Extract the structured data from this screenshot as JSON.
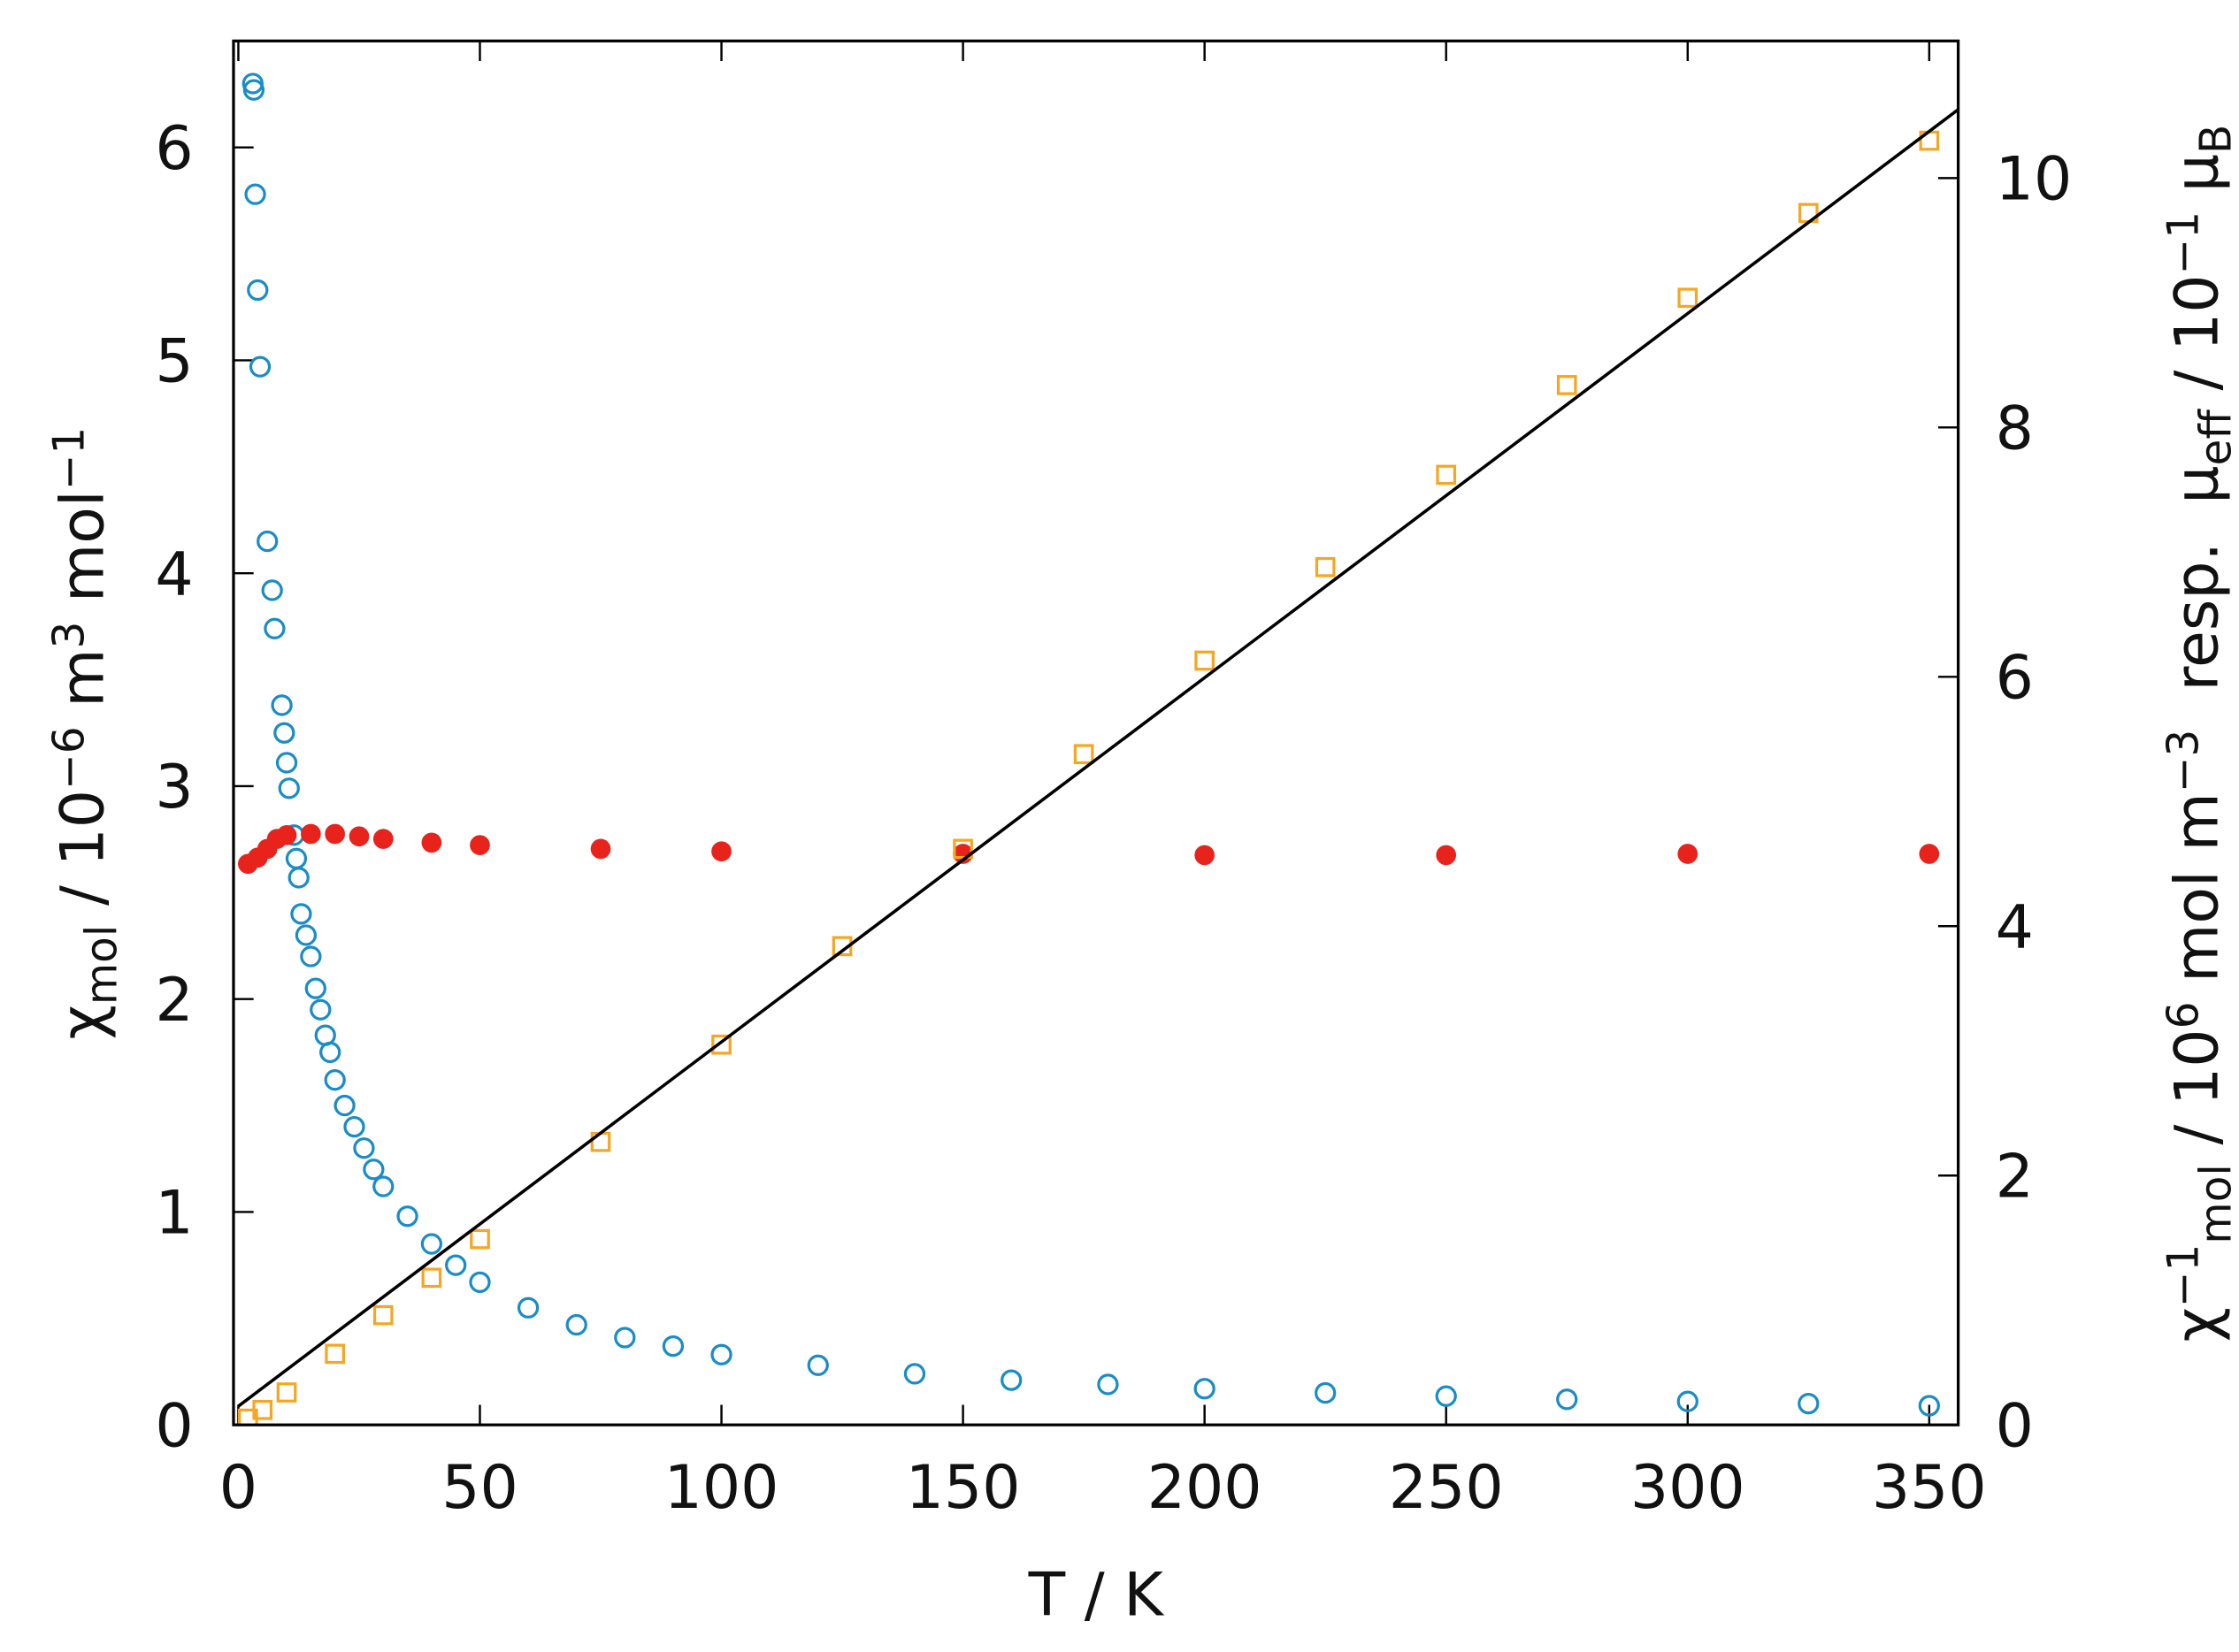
{
  "chart_data": {
    "type": "scatter",
    "x_label": "T / K",
    "y_label": [
      {
        "text": "χ",
        "pos": "base"
      },
      {
        "text": "mol",
        "pos": "sub"
      },
      {
        "text": " / 10",
        "pos": "base"
      },
      {
        "text": "−6",
        "pos": "sup"
      },
      {
        "text": " m",
        "pos": "base"
      },
      {
        "text": "3",
        "pos": "sup"
      },
      {
        "text": " mol",
        "pos": "base"
      },
      {
        "text": "−1",
        "pos": "sup"
      }
    ],
    "y2_label": [
      {
        "text": "χ",
        "pos": "base"
      },
      {
        "text": "−1",
        "pos": "sup"
      },
      {
        "text": "mol",
        "pos": "sub"
      },
      {
        "text": " / 10",
        "pos": "base"
      },
      {
        "text": "6",
        "pos": "sup"
      },
      {
        "text": " mol m",
        "pos": "base"
      },
      {
        "text": "−3",
        "pos": "sup"
      },
      {
        "text": "  resp.  μ",
        "pos": "base"
      },
      {
        "text": "eff",
        "pos": "sub"
      },
      {
        "text": " / 10",
        "pos": "base"
      },
      {
        "text": "−1",
        "pos": "sup"
      },
      {
        "text": " μ",
        "pos": "base"
      },
      {
        "text": "B",
        "pos": "sub"
      }
    ],
    "xlim": [
      -1,
      356
    ],
    "xticks": [
      0,
      50,
      100,
      150,
      200,
      250,
      300,
      350
    ],
    "ylim": [
      0,
      6.5
    ],
    "yticks": [
      0,
      1,
      2,
      3,
      4,
      5,
      6
    ],
    "y2lim": [
      0,
      11.1
    ],
    "y2ticks": [
      0,
      2,
      4,
      6,
      8,
      10
    ],
    "series": [
      {
        "color": "#1a8cc6",
        "marker": "open-circle",
        "axis": "y",
        "x": [
          3,
          3.2,
          3.5,
          4,
          4.5,
          6,
          7,
          7.5,
          9,
          9.5,
          10,
          10.5,
          11.5,
          12,
          12.5,
          13,
          14,
          15,
          16,
          17,
          18,
          19,
          20,
          22,
          24,
          26,
          28,
          30,
          35,
          40,
          45,
          50,
          60,
          70,
          80,
          90,
          100,
          120,
          140,
          160,
          180,
          200,
          225,
          250,
          275,
          300,
          325,
          350
        ],
        "values": [
          6.3,
          6.27,
          5.78,
          5.33,
          4.97,
          4.15,
          3.92,
          3.74,
          3.38,
          3.25,
          3.11,
          2.99,
          2.77,
          2.66,
          2.57,
          2.4,
          2.3,
          2.2,
          2.05,
          1.95,
          1.83,
          1.75,
          1.62,
          1.5,
          1.4,
          1.3,
          1.2,
          1.12,
          0.98,
          0.85,
          0.75,
          0.67,
          0.55,
          0.47,
          0.41,
          0.37,
          0.33,
          0.28,
          0.24,
          0.21,
          0.19,
          0.17,
          0.15,
          0.135,
          0.12,
          0.11,
          0.1,
          0.09
        ]
      },
      {
        "color": "#e8231c",
        "marker": "filled-circle",
        "axis": "y2",
        "x": [
          2,
          4,
          6,
          8,
          10,
          15,
          20,
          25,
          30,
          40,
          50,
          75,
          100,
          150,
          200,
          250,
          300,
          350
        ],
        "values": [
          4.5,
          4.55,
          4.62,
          4.7,
          4.73,
          4.74,
          4.74,
          4.72,
          4.7,
          4.67,
          4.65,
          4.62,
          4.6,
          4.58,
          4.57,
          4.57,
          4.58,
          4.58
        ]
      },
      {
        "color": "#f5a623",
        "marker": "open-square",
        "axis": "y2",
        "x": [
          2,
          5,
          10,
          20,
          30,
          40,
          50,
          75,
          100,
          125,
          150,
          175,
          200,
          225,
          250,
          275,
          300,
          325,
          350
        ],
        "values": [
          0.05,
          0.12,
          0.26,
          0.57,
          0.88,
          1.18,
          1.49,
          2.27,
          3.05,
          3.84,
          4.62,
          5.38,
          6.13,
          6.88,
          7.62,
          8.34,
          9.04,
          9.72,
          10.3
        ]
      },
      {
        "color": "#000000",
        "marker": "line",
        "axis": "y2",
        "x": [
          0,
          356
        ],
        "values": [
          0.15,
          10.55
        ]
      }
    ]
  }
}
